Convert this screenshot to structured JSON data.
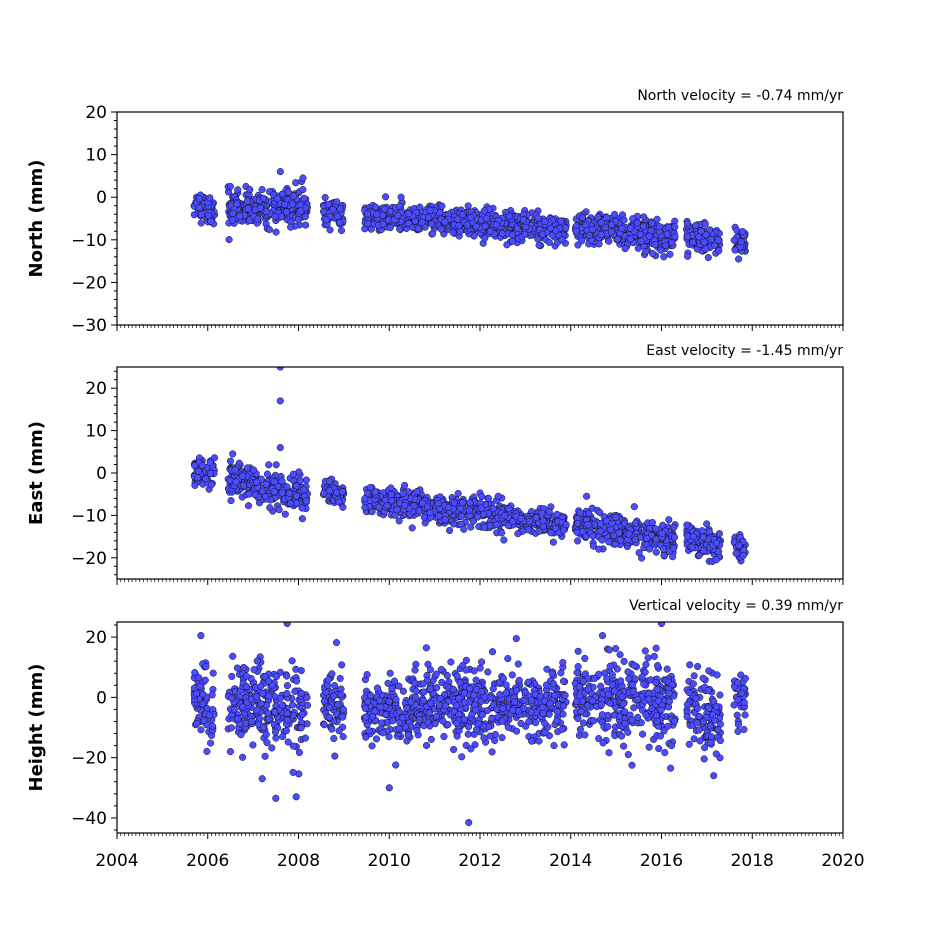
{
  "chart_data": [
    {
      "type": "scatter",
      "title": "North velocity = -0.74 mm/yr",
      "ylabel": "North (mm)",
      "xlim": [
        2004,
        2020
      ],
      "ylim": [
        -30,
        20
      ],
      "yticks": [
        20,
        10,
        0,
        -10,
        -20,
        -30
      ],
      "marker_color": "#4b4bff",
      "segments": [
        {
          "start": 2005.7,
          "end": 2006.15,
          "y0": -1.5,
          "y1": -3.5,
          "spread": 1.6
        },
        {
          "start": 2006.45,
          "end": 2008.2,
          "y0": -3.0,
          "y1": -2.0,
          "spread": 2.0
        },
        {
          "start": 2008.55,
          "end": 2009.0,
          "y0": -3.5,
          "y1": -4.5,
          "spread": 1.6
        },
        {
          "start": 2009.45,
          "end": 2013.9,
          "y0": -4.5,
          "y1": -7.5,
          "spread": 1.6
        },
        {
          "start": 2014.1,
          "end": 2016.3,
          "y0": -7.0,
          "y1": -9.5,
          "spread": 1.8
        },
        {
          "start": 2016.55,
          "end": 2017.3,
          "y0": -8.5,
          "y1": -10.0,
          "spread": 1.6
        },
        {
          "start": 2017.6,
          "end": 2017.85,
          "y0": -10.5,
          "y1": -11.0,
          "spread": 1.5
        }
      ],
      "outliers": [
        [
          2007.6,
          6.0
        ],
        [
          2008.1,
          4.5
        ],
        [
          2006.5,
          2.5
        ],
        [
          2017.7,
          -14.5
        ],
        [
          2016.05,
          -14.0
        ]
      ]
    },
    {
      "type": "scatter",
      "title": "East velocity = -1.45 mm/yr",
      "ylabel": "East (mm)",
      "xlim": [
        2004,
        2020
      ],
      "ylim": [
        -25,
        25
      ],
      "yticks": [
        20,
        10,
        0,
        -10,
        -20
      ],
      "marker_color": "#4b4bff",
      "segments": [
        {
          "start": 2005.7,
          "end": 2006.15,
          "y0": 0.0,
          "y1": 0.0,
          "spread": 1.8
        },
        {
          "start": 2006.45,
          "end": 2008.2,
          "y0": -1.0,
          "y1": -6.0,
          "spread": 2.2
        },
        {
          "start": 2008.55,
          "end": 2009.0,
          "y0": -4.0,
          "y1": -5.5,
          "spread": 1.5
        },
        {
          "start": 2009.45,
          "end": 2013.9,
          "y0": -6.0,
          "y1": -12.5,
          "spread": 1.6
        },
        {
          "start": 2014.1,
          "end": 2016.3,
          "y0": -12.0,
          "y1": -16.0,
          "spread": 1.8
        },
        {
          "start": 2016.55,
          "end": 2017.3,
          "y0": -15.0,
          "y1": -17.5,
          "spread": 1.8
        },
        {
          "start": 2017.6,
          "end": 2017.85,
          "y0": -17.0,
          "y1": -18.0,
          "spread": 1.3
        }
      ],
      "outliers": [
        [
          2007.6,
          25.0
        ],
        [
          2007.6,
          17.0
        ],
        [
          2007.6,
          6.0
        ],
        [
          2006.55,
          4.5
        ],
        [
          2012.4,
          -5.5
        ],
        [
          2014.35,
          -5.5
        ],
        [
          2017.8,
          -19.5
        ]
      ]
    },
    {
      "type": "scatter",
      "title": "Vertical velocity = 0.39 mm/yr",
      "ylabel": "Height (mm)",
      "xlim": [
        2004,
        2020
      ],
      "ylim": [
        -45,
        25
      ],
      "yticks": [
        20,
        0,
        -20,
        -40
      ],
      "xticks": [
        2004,
        2006,
        2008,
        2010,
        2012,
        2014,
        2016,
        2018,
        2020
      ],
      "marker_color": "#4b4bff",
      "segments": [
        {
          "start": 2005.7,
          "end": 2006.15,
          "y0": 0.0,
          "y1": -5.0,
          "spread": 6.0
        },
        {
          "start": 2006.45,
          "end": 2008.2,
          "y0": -2.0,
          "y1": -4.0,
          "spread": 7.0
        },
        {
          "start": 2008.55,
          "end": 2009.0,
          "y0": -2.0,
          "y1": -3.0,
          "spread": 5.5
        },
        {
          "start": 2009.45,
          "end": 2013.9,
          "y0": -4.0,
          "y1": -2.0,
          "spread": 6.0
        },
        {
          "start": 2014.1,
          "end": 2016.3,
          "y0": 0.0,
          "y1": -2.0,
          "spread": 6.5
        },
        {
          "start": 2016.55,
          "end": 2017.3,
          "y0": 0.0,
          "y1": -10.0,
          "spread": 6.0
        },
        {
          "start": 2017.6,
          "end": 2017.85,
          "y0": -1.0,
          "y1": 0.0,
          "spread": 5.0
        }
      ],
      "outliers": [
        [
          2011.75,
          -41.5
        ],
        [
          2007.5,
          -33.5
        ],
        [
          2007.95,
          -33.0
        ],
        [
          2007.2,
          -27.0
        ],
        [
          2005.85,
          20.5
        ],
        [
          2007.75,
          24.5
        ],
        [
          2016.0,
          24.5
        ],
        [
          2012.8,
          19.5
        ],
        [
          2014.7,
          20.5
        ],
        [
          2010.0,
          -30.0
        ],
        [
          2017.15,
          -26.0
        ],
        [
          2016.2,
          -23.5
        ],
        [
          2015.35,
          -22.5
        ],
        [
          2008.8,
          -19.5
        ],
        [
          2013.3,
          -14.5
        ]
      ]
    }
  ]
}
